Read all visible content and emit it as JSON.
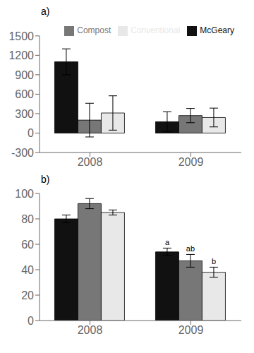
{
  "chart_data": [
    {
      "type": "bar",
      "title": "a)",
      "categories": [
        "2008",
        "2009"
      ],
      "series": [
        {
          "name": "McGeary",
          "color": "#111111",
          "values": [
            1100,
            175
          ],
          "errors": [
            200,
            155
          ]
        },
        {
          "name": "Compost",
          "color": "#777777",
          "values": [
            200,
            270
          ],
          "errors": [
            260,
            110
          ]
        },
        {
          "name": "Conventional",
          "color": "#e8e8e8",
          "values": [
            310,
            240
          ],
          "errors": [
            265,
            145
          ]
        }
      ],
      "ylim": [
        -300,
        1500
      ],
      "yticks": [
        -300,
        0,
        300,
        600,
        900,
        1200,
        1500
      ],
      "grid": false,
      "legend": "upper right"
    },
    {
      "type": "bar",
      "title": "b)",
      "categories": [
        "2008",
        "2009"
      ],
      "series": [
        {
          "name": "McGeary",
          "color": "#111111",
          "values": [
            80,
            54
          ],
          "errors": [
            3,
            3
          ],
          "annotations": [
            null,
            "a"
          ]
        },
        {
          "name": "Compost",
          "color": "#777777",
          "values": [
            92,
            47
          ],
          "errors": [
            4,
            5
          ],
          "annotations": [
            null,
            "ab"
          ]
        },
        {
          "name": "Conventional",
          "color": "#e8e8e8",
          "values": [
            85,
            38
          ],
          "errors": [
            2,
            4
          ],
          "annotations": [
            null,
            "b"
          ]
        }
      ],
      "ylim": [
        0,
        100
      ],
      "yticks": [
        0,
        20,
        40,
        60,
        80,
        100
      ],
      "grid": false
    }
  ]
}
